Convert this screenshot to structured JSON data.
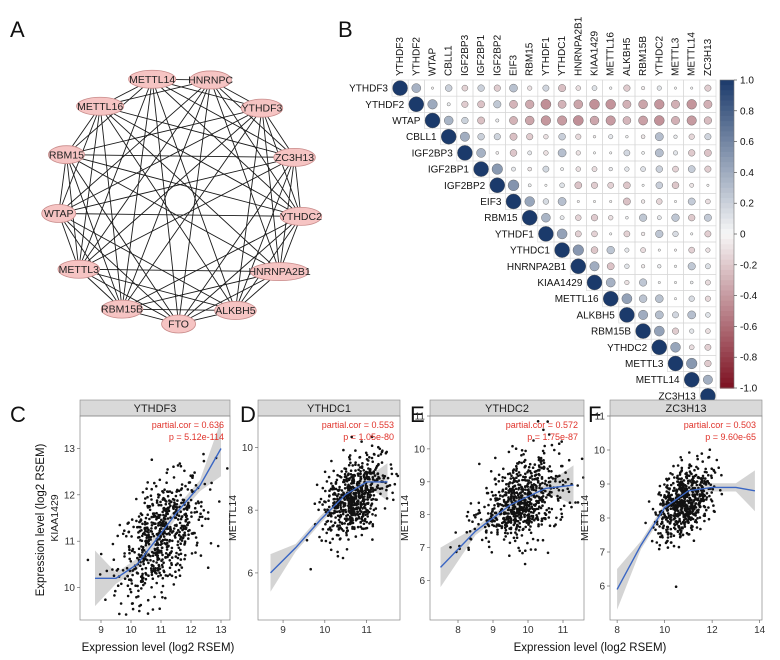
{
  "panels": {
    "a": {
      "letter": "A"
    },
    "b": {
      "letter": "B"
    },
    "c": {
      "letter": "C"
    },
    "d": {
      "letter": "D"
    },
    "e": {
      "letter": "E"
    },
    "f": {
      "letter": "F"
    }
  },
  "axis_labels": {
    "expression_y": "Expression level (log2 RSEM)",
    "expression_x": "Expression level (log2 RSEM)"
  },
  "colors": {
    "node_fill": "#f6c4c3",
    "node_stroke": "#c98c8b",
    "positive_dark": "#1b3a6b",
    "negative_dark": "#7d1020",
    "neutral": "#f7f7f7",
    "annotation_red": "#e0332b",
    "fit_line": "#3a66c4"
  },
  "chart_data": [
    {
      "type": "network",
      "panel": "A",
      "nodes": [
        "METTL14",
        "HNRNPC",
        "YTHDF3",
        "ZC3H13",
        "YTHDC2",
        "HNRNPA2B1",
        "ALKBH5",
        "FTO",
        "RBM15B",
        "METTL3",
        "WTAP",
        "RBM15",
        "METTL16"
      ],
      "edges": "dense co-expression network linking most node pairs"
    },
    {
      "type": "heatmap",
      "panel": "B",
      "subtype": "correlation-matrix (upper triangle, circle size and color = Pearson r)",
      "genes": [
        "YTHDF3",
        "YTHDF2",
        "WTAP",
        "CBLL1",
        "IGF2BP3",
        "IGF2BP1",
        "IGF2BP2",
        "EIF3",
        "RBM15",
        "YTHDF1",
        "YTHDC1",
        "HNRNPA2B1",
        "KIAA1429",
        "METTL16",
        "ALKBH5",
        "RBM15B",
        "YTHDC2",
        "METTL3",
        "METTL14",
        "ZC3H13"
      ],
      "colorbar": {
        "min": -1.0,
        "max": 1.0,
        "ticks": [
          "1.0",
          "0.8",
          "0.6",
          "0.4",
          "0.2",
          "0",
          "-0.2",
          "-0.4",
          "-0.6",
          "-0.8",
          "-1.0"
        ]
      }
    },
    {
      "type": "scatter",
      "panel": "C",
      "title": "YTHDF3",
      "ylabel": "KIAA1429",
      "xlim": [
        8.3,
        13.3
      ],
      "ylim": [
        9.3,
        13.7
      ],
      "xticks": [
        "9",
        "10",
        "11",
        "12",
        "13"
      ],
      "yticks": [
        "10",
        "11",
        "12",
        "13"
      ],
      "cor_text": "partial.cor = 0.636",
      "p_text": "p = 5.12e-114",
      "trend": [
        [
          8.8,
          10.2
        ],
        [
          9.5,
          10.2
        ],
        [
          10.2,
          10.5
        ],
        [
          10.8,
          11.0
        ],
        [
          11.5,
          11.6
        ],
        [
          12.3,
          12.2
        ],
        [
          13.0,
          13.0
        ]
      ],
      "center": [
        11.0,
        11.1
      ],
      "spread": [
        0.7,
        0.55
      ],
      "slope": 0.85,
      "n": 650
    },
    {
      "type": "scatter",
      "panel": "D",
      "title": "YTHDC1",
      "ylabel": "METTL14",
      "xlim": [
        8.4,
        11.8
      ],
      "ylim": [
        4.5,
        11.0
      ],
      "xticks": [
        "9",
        "10",
        "11"
      ],
      "yticks": [
        "6",
        "8",
        "10"
      ],
      "cor_text": "partial.cor = 0.553",
      "p_text": "p = 1.05e-80",
      "trend": [
        [
          8.7,
          6.0
        ],
        [
          9.3,
          6.8
        ],
        [
          9.9,
          7.7
        ],
        [
          10.5,
          8.5
        ],
        [
          11.0,
          8.9
        ],
        [
          11.5,
          8.9
        ]
      ],
      "center": [
        10.7,
        8.4
      ],
      "spread": [
        0.35,
        0.6
      ],
      "slope": 1.3,
      "n": 650
    },
    {
      "type": "scatter",
      "panel": "E",
      "title": "YTHDC2",
      "ylabel": "METTL14",
      "xlim": [
        7.2,
        11.6
      ],
      "ylim": [
        4.8,
        11.0
      ],
      "xticks": [
        "8",
        "9",
        "10",
        "11"
      ],
      "yticks": [
        "6",
        "7",
        "8",
        "9",
        "10",
        "11"
      ],
      "cor_text": "partial.cor = 0.572",
      "p_text": "p = 1.75e-87",
      "trend": [
        [
          7.5,
          6.4
        ],
        [
          8.5,
          7.5
        ],
        [
          9.5,
          8.3
        ],
        [
          10.5,
          8.8
        ],
        [
          11.3,
          8.9
        ]
      ],
      "center": [
        9.8,
        8.4
      ],
      "spread": [
        0.6,
        0.6
      ],
      "slope": 0.75,
      "n": 700
    },
    {
      "type": "scatter",
      "panel": "F",
      "title": "ZC3H13",
      "ylabel": "METTL14",
      "xlim": [
        7.7,
        14.1
      ],
      "ylim": [
        5.0,
        11.0
      ],
      "xticks": [
        "8",
        "10",
        "12",
        "14"
      ],
      "yticks": [
        "6",
        "7",
        "8",
        "9",
        "10",
        "11"
      ],
      "cor_text": "partial.cor = 0.503",
      "p_text": "p = 9.60e-65",
      "trend": [
        [
          8.0,
          5.9
        ],
        [
          9.0,
          7.2
        ],
        [
          10.0,
          8.3
        ],
        [
          11.0,
          8.8
        ],
        [
          12.0,
          8.9
        ],
        [
          13.0,
          8.9
        ],
        [
          13.8,
          8.8
        ]
      ],
      "center": [
        10.8,
        8.5
      ],
      "spread": [
        0.55,
        0.5
      ],
      "slope": 0.7,
      "n": 650
    }
  ]
}
